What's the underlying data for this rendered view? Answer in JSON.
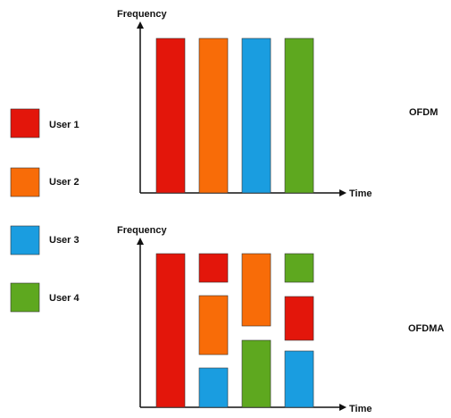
{
  "colors": {
    "user1": "#e3160b",
    "user2": "#f86c08",
    "user3": "#1a9de0",
    "user4": "#5ea81f",
    "axis": "#111111"
  },
  "legend": [
    {
      "label": "User 1",
      "color_key": "user1"
    },
    {
      "label": "User 2",
      "color_key": "user2"
    },
    {
      "label": "User 3",
      "color_key": "user3"
    },
    {
      "label": "User 4",
      "color_key": "user4"
    }
  ],
  "diagrams": {
    "ofdm": {
      "name": "OFDM",
      "y_axis_label": "Frequency",
      "x_axis_label": "Time"
    },
    "ofdma": {
      "name": "OFDMA",
      "y_axis_label": "Frequency",
      "x_axis_label": "Time"
    }
  }
}
